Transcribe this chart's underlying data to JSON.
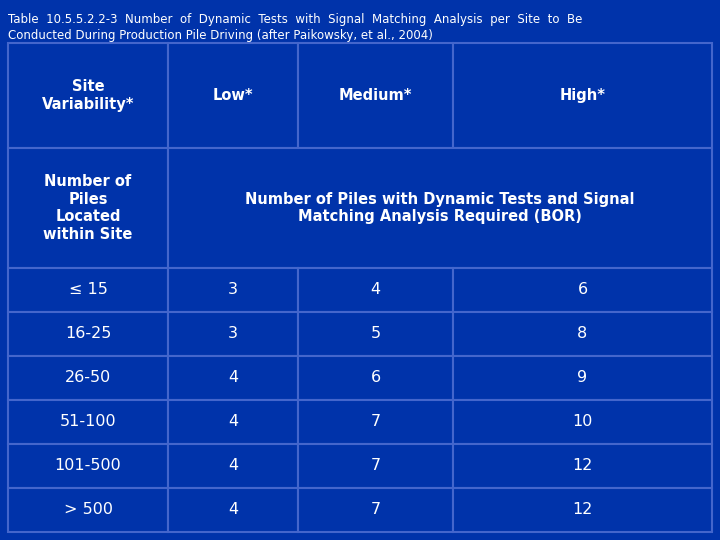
{
  "title_line1": "Table  10.5.5.2.2-3  Number  of  Dynamic  Tests  with  Signal  Matching  Analysis  per  Site  to  Be",
  "title_line2": "Conducted During Production Pile Driving (after Paikowsky, et al., 2004)",
  "bg_color": "#0033AA",
  "line_color": "#4466CC",
  "text_color": "#FFFFFF",
  "header_row2_span": "Number of Piles with Dynamic Tests and Signal\nMatching Analysis Required (BOR)",
  "data_rows": [
    [
      "≤ 15",
      "3",
      "4",
      "6"
    ],
    [
      "16-25",
      "3",
      "5",
      "8"
    ],
    [
      "26-50",
      "4",
      "6",
      "9"
    ],
    [
      "51-100",
      "4",
      "7",
      "10"
    ],
    [
      "101-500",
      "4",
      "7",
      "12"
    ],
    [
      "> 500",
      "4",
      "7",
      "12"
    ]
  ],
  "title_fontsize": 8.5,
  "header_fontsize": 10.5,
  "data_fontsize": 11.5
}
